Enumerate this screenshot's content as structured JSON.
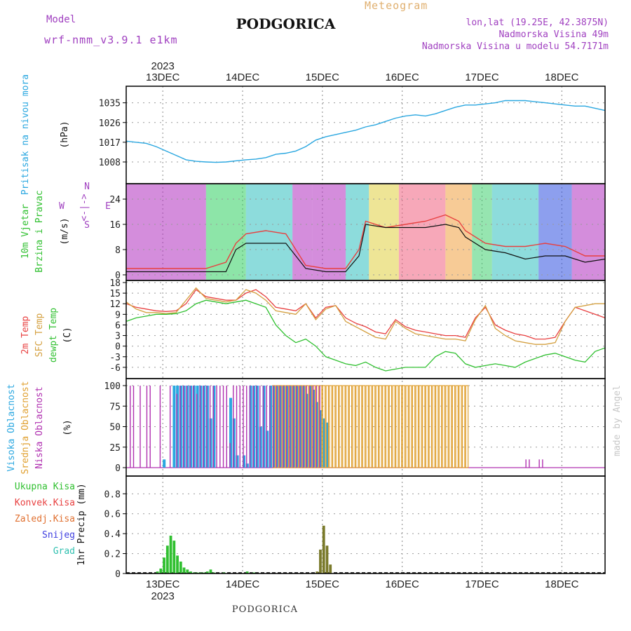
{
  "header": {
    "title": "PODGORICA",
    "model_label": "Model",
    "model_value": "wrf-nmm_v3.9.1 e1km",
    "meteogram_label": "Meteogram",
    "coords": "lon,lat (19.25E, 42.3875N)",
    "elevation": "Nadmorska Visina 49m",
    "model_elevation": "Nadmorska Visina u modelu 54.7171m",
    "year_top": "2023",
    "year_bottom": "2023",
    "bottom_station": "PODGORICA",
    "credit": "made by Angel"
  },
  "colors": {
    "pressure": "#2aa7e0",
    "temp2m": "#e84040",
    "sfc_temp": "#d4a040",
    "dewpoint": "#30c030",
    "cloud_high": "#2aa7e0",
    "cloud_mid": "#e0a030",
    "cloud_low": "#b030b0",
    "precip_total": "#30c030",
    "precip_conv": "#e84040",
    "purple_label": "#a040c0"
  },
  "chart_data": [
    {
      "type": "line",
      "panel": "pressure",
      "ylabel_left": "Pritisak na nivou mora",
      "ylabel": "(hPa)",
      "x_dates": [
        "13DEC",
        "14DEC",
        "15DEC",
        "16DEC",
        "17DEC",
        "18DEC"
      ],
      "ylim": [
        1000,
        1040
      ],
      "yticks": [
        1008,
        1017,
        1026,
        1035
      ],
      "x": [
        0,
        3,
        6,
        9,
        12,
        15,
        18,
        21,
        24,
        27,
        30,
        33,
        36,
        39,
        42,
        45,
        48,
        51,
        54,
        57,
        60,
        63,
        66,
        69,
        72,
        75,
        78,
        81,
        84,
        87,
        90,
        93,
        96,
        99,
        102,
        105,
        108,
        111,
        114,
        117,
        120,
        123,
        126,
        129,
        132,
        135,
        138,
        141,
        144
      ],
      "series": [
        {
          "values": [
            1017.5,
            1017,
            1016.5,
            1015,
            1013,
            1011,
            1009,
            1008.3,
            1008,
            1007.8,
            1008,
            1008.5,
            1009,
            1009.3,
            1010,
            1011.5,
            1012,
            1013,
            1015,
            1018,
            1019.5,
            1020.5,
            1021.5,
            1022.5,
            1024,
            1025,
            1026.5,
            1028,
            1029,
            1029.5,
            1029,
            1030,
            1031.5,
            1033,
            1034,
            1034,
            1034.5,
            1035,
            1036,
            1036,
            1036,
            1035.5,
            1035,
            1034.5,
            1034,
            1033.5,
            1033.5,
            1032.5,
            1031.5
          ]
        }
      ]
    },
    {
      "type": "line",
      "panel": "wind",
      "ylabel_left": [
        "10m Vjetar",
        "Brzina i Pravac"
      ],
      "ylabel": "(m/s)",
      "compass_labels": [
        "W",
        "<-|->",
        "E",
        "N",
        "S"
      ],
      "ylim": [
        0,
        28
      ],
      "yticks": [
        0,
        8,
        16,
        24
      ],
      "x": [
        0,
        6,
        12,
        18,
        24,
        30,
        33,
        36,
        42,
        48,
        54,
        60,
        66,
        70,
        72,
        78,
        84,
        90,
        96,
        100,
        102,
        108,
        114,
        120,
        126,
        132,
        138,
        144
      ],
      "series": [
        {
          "name": "speed",
          "values": [
            1,
            1,
            1,
            1,
            1,
            1,
            8,
            10,
            10,
            10,
            2,
            1,
            1,
            6,
            16,
            15,
            15,
            15,
            16,
            15,
            12,
            8,
            7,
            5,
            6,
            6,
            4,
            5
          ]
        },
        {
          "name": "gust",
          "values": [
            2,
            2,
            2,
            2,
            2,
            4,
            10,
            13,
            14,
            13,
            3,
            2,
            2,
            8,
            17,
            15,
            16,
            17,
            19,
            17,
            14,
            10,
            9,
            9,
            10,
            9,
            6,
            6
          ]
        }
      ]
    },
    {
      "type": "line",
      "panel": "temperature",
      "ylabel_left": [
        "2m Temp",
        "SFC Temp",
        "dewpt Temp"
      ],
      "ylabel": "(C)",
      "ylim": [
        -8,
        18
      ],
      "yticks": [
        -6,
        -3,
        0,
        3,
        6,
        9,
        12,
        15,
        18
      ],
      "x": [
        0,
        3,
        6,
        9,
        12,
        15,
        18,
        21,
        24,
        27,
        30,
        33,
        36,
        39,
        42,
        45,
        48,
        51,
        54,
        57,
        60,
        63,
        66,
        69,
        72,
        75,
        78,
        81,
        84,
        87,
        90,
        93,
        96,
        99,
        102,
        105,
        108,
        111,
        114,
        117,
        120,
        123,
        126,
        129,
        132,
        135,
        138,
        141,
        144
      ],
      "series": [
        {
          "name": "2m Temp",
          "values": [
            12,
            11,
            10.5,
            10,
            9.8,
            10,
            12,
            16,
            14,
            13.5,
            13,
            13,
            15,
            16,
            14,
            11,
            10.5,
            10,
            12,
            8,
            11,
            11.5,
            8,
            6.5,
            5.5,
            4,
            3.5,
            7.5,
            5.5,
            4.5,
            4,
            3.5,
            3,
            3,
            2.5,
            8,
            11,
            6,
            4.5,
            3.5,
            3,
            2,
            2,
            2.5,
            7,
            11,
            10,
            9,
            8
          ]
        },
        {
          "name": "SFC Temp",
          "values": [
            12.5,
            10.5,
            9.5,
            9.5,
            9.2,
            9.5,
            13,
            16.5,
            13.5,
            13,
            12.5,
            13,
            16,
            15,
            13,
            10,
            9.5,
            9,
            12,
            7.5,
            10.5,
            11.5,
            7,
            5.5,
            4,
            2.5,
            2,
            7,
            5,
            3.5,
            3,
            2.5,
            2,
            2,
            1.5,
            7.5,
            11.5,
            5,
            3,
            1.5,
            1,
            0.5,
            0.5,
            1,
            7,
            11,
            11.5,
            12,
            12
          ]
        },
        {
          "name": "dewpt Temp",
          "values": [
            7,
            8,
            8.5,
            9,
            9,
            9.2,
            10,
            12,
            13,
            12.5,
            12,
            12.5,
            13,
            12,
            11,
            6,
            3,
            1,
            2,
            0,
            -3,
            -4,
            -5,
            -5.5,
            -4.5,
            -6,
            -7,
            -6.5,
            -6,
            -6,
            -6,
            -3,
            -1.5,
            -2,
            -5,
            -6,
            -5.5,
            -5,
            -5.5,
            -6,
            -4.5,
            -3.5,
            -2.5,
            -2,
            -3,
            -4,
            -4.5,
            -1.5,
            -0.5
          ]
        }
      ]
    },
    {
      "type": "bar",
      "panel": "clouds",
      "ylabel_left": [
        "Visoka Oblacnost",
        "Srednja Oblacnost",
        "Niska Oblacnost"
      ],
      "ylabel": "(%)",
      "ylim": [
        0,
        100
      ],
      "yticks": [
        0,
        25,
        50,
        75,
        100
      ],
      "series": [
        {
          "name": "Visoka Oblacnost",
          "x": [
            11,
            14,
            15,
            16,
            17,
            18,
            19,
            20,
            21,
            22,
            23,
            24,
            25,
            26,
            31,
            32,
            33,
            35,
            36,
            37,
            38,
            39,
            40,
            41,
            42,
            43,
            44,
            45,
            46,
            47,
            48,
            49,
            50,
            51,
            52,
            53,
            54,
            55,
            56,
            57,
            58,
            59,
            60
          ],
          "values": [
            10,
            100,
            100,
            100,
            100,
            100,
            100,
            100,
            100,
            100,
            100,
            100,
            60,
            100,
            85,
            60,
            15,
            15,
            5,
            100,
            100,
            100,
            50,
            100,
            45,
            100,
            100,
            100,
            100,
            100,
            100,
            100,
            100,
            100,
            100,
            100,
            90,
            100,
            95,
            80,
            70,
            60,
            55
          ]
        },
        {
          "name": "Srednja Oblacnost",
          "x": [
            44,
            45,
            46,
            47,
            48,
            49,
            50,
            51,
            52,
            53,
            54,
            55,
            56,
            57,
            58,
            59,
            60,
            61,
            62,
            63,
            64,
            65,
            66,
            67,
            68,
            69,
            70,
            71,
            72,
            73,
            74,
            75,
            76,
            77,
            78,
            79,
            80,
            81,
            82,
            83,
            84,
            85,
            86,
            87,
            88,
            89,
            90,
            91,
            92,
            93,
            94,
            95,
            96,
            97,
            98,
            99,
            100,
            101,
            102
          ],
          "values": [
            100,
            100,
            100,
            100,
            100,
            100,
            100,
            100,
            100,
            100,
            100,
            100,
            100,
            100,
            100,
            100,
            100,
            100,
            100,
            100,
            100,
            100,
            100,
            100,
            100,
            100,
            100,
            100,
            100,
            100,
            100,
            100,
            100,
            100,
            100,
            100,
            100,
            100,
            100,
            100,
            100,
            100,
            100,
            100,
            100,
            100,
            100,
            100,
            100,
            100,
            100,
            100,
            100,
            100,
            100,
            100,
            100,
            100,
            100
          ]
        },
        {
          "name": "Niska Oblacnost",
          "x": [
            1,
            2,
            4,
            6,
            7,
            10,
            13,
            15,
            16,
            17,
            18,
            19,
            20,
            21,
            22,
            23,
            24,
            25,
            26,
            27,
            28,
            29,
            30,
            31,
            32,
            33,
            34,
            35,
            36,
            37,
            38,
            39,
            40,
            41,
            42,
            43,
            44,
            45,
            46,
            47,
            48,
            49,
            50,
            51,
            52,
            53,
            54,
            55,
            56,
            57,
            58,
            120,
            121,
            124,
            125
          ],
          "values": [
            100,
            100,
            100,
            100,
            100,
            100,
            100,
            90,
            100,
            100,
            100,
            100,
            100,
            90,
            100,
            100,
            100,
            100,
            100,
            100,
            100,
            100,
            100,
            30,
            100,
            100,
            100,
            100,
            100,
            100,
            100,
            100,
            100,
            100,
            100,
            100,
            100,
            100,
            100,
            100,
            100,
            100,
            100,
            100,
            100,
            100,
            100,
            100,
            100,
            100,
            100,
            10,
            10,
            10,
            10
          ]
        }
      ]
    },
    {
      "type": "bar",
      "panel": "precip",
      "ylabel_left": [
        "Ukupna Kisa",
        "Konvek.Kisa",
        "Zaledj.Kisa",
        "Snijeg",
        "Grad"
      ],
      "label_colors": [
        "#30c030",
        "#e84040",
        "#e07030",
        "#4040e0",
        "#30c0b0"
      ],
      "ylabel": "1hr Precip (mm)",
      "ylim": [
        0,
        0.95
      ],
      "yticks": [
        0,
        0.2,
        0.4,
        0.6,
        0.8
      ],
      "x_dates": [
        "13DEC",
        "14DEC",
        "15DEC",
        "16DEC",
        "17DEC",
        "18DEC"
      ],
      "series": [
        {
          "name": "Ukupna Kisa",
          "x": [
            9,
            10,
            11,
            12,
            13,
            14,
            15,
            16,
            17,
            18,
            19,
            20,
            21,
            22,
            23,
            24,
            25,
            26,
            29,
            36,
            38,
            57,
            58,
            59,
            60,
            61
          ],
          "values": [
            0.02,
            0.05,
            0.16,
            0.28,
            0.38,
            0.33,
            0.18,
            0.12,
            0.06,
            0.04,
            0.02,
            0.01,
            0.01,
            0.01,
            0.01,
            0.02,
            0.04,
            0.01,
            0.01,
            0.02,
            0.01,
            0.02,
            0.24,
            0.48,
            0.28,
            0.09
          ]
        }
      ]
    }
  ]
}
